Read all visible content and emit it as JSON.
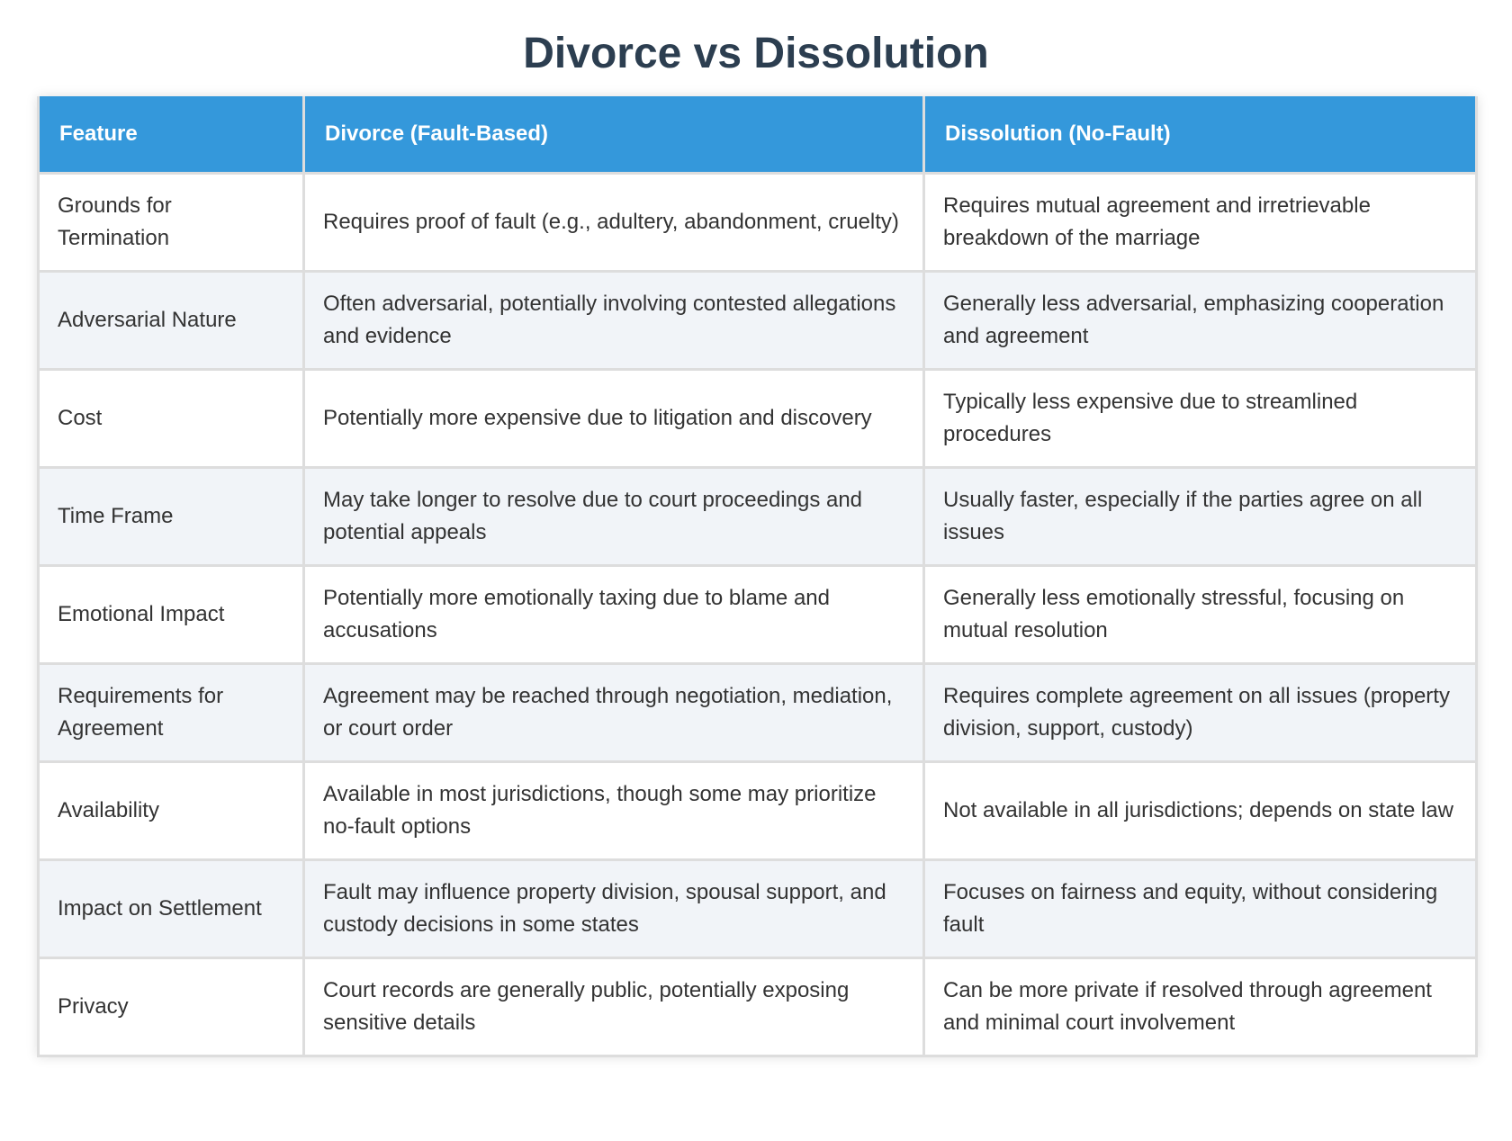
{
  "title": "Divorce vs Dissolution",
  "table": {
    "headers": [
      "Feature",
      "Divorce (Fault-Based)",
      "Dissolution (No-Fault)"
    ],
    "rows": [
      {
        "feature": "Grounds for Termination",
        "divorce": "Requires proof of fault (e.g., adultery, abandonment, cruelty)",
        "dissolution": "Requires mutual agreement and irretrievable breakdown of the marriage"
      },
      {
        "feature": "Adversarial Nature",
        "divorce": "Often adversarial, potentially involving contested allegations and evidence",
        "dissolution": "Generally less adversarial, emphasizing cooperation and agreement"
      },
      {
        "feature": "Cost",
        "divorce": "Potentially more expensive due to litigation and discovery",
        "dissolution": "Typically less expensive due to streamlined procedures"
      },
      {
        "feature": "Time Frame",
        "divorce": "May take longer to resolve due to court proceedings and potential appeals",
        "dissolution": "Usually faster, especially if the parties agree on all issues"
      },
      {
        "feature": "Emotional Impact",
        "divorce": "Potentially more emotionally taxing due to blame and accusations",
        "dissolution": "Generally less emotionally stressful, focusing on mutual resolution"
      },
      {
        "feature": "Requirements for Agreement",
        "divorce": "Agreement may be reached through negotiation, mediation, or court order",
        "dissolution": "Requires complete agreement on all issues (property division, support, custody)"
      },
      {
        "feature": "Availability",
        "divorce": "Available in most jurisdictions, though some may prioritize no-fault options",
        "dissolution": "Not available in all jurisdictions; depends on state law"
      },
      {
        "feature": "Impact on Settlement",
        "divorce": "Fault may influence property division, spousal support, and custody decisions in some states",
        "dissolution": "Focuses on fairness and equity, without considering fault"
      },
      {
        "feature": "Privacy",
        "divorce": "Court records are generally public, potentially exposing sensitive details",
        "dissolution": "Can be more private if resolved through agreement and minimal court involvement"
      }
    ]
  },
  "colors": {
    "header_bg": "#3498db",
    "title": "#2c3e50",
    "row_alt": "#f1f4f8"
  }
}
